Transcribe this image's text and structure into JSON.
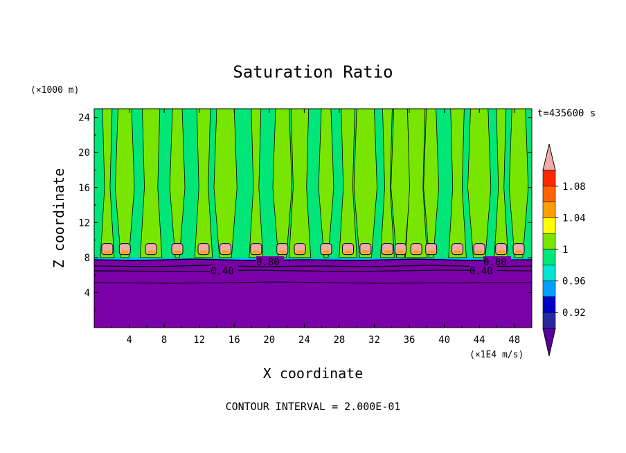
{
  "chart_data": {
    "type": "heatmap",
    "title": "Saturation Ratio",
    "xlabel": "X coordinate",
    "ylabel": "Z coordinate",
    "x_unit": "(×1E4 m/s)",
    "y_unit": "(×1000 m)",
    "time_label": "t=435600 s",
    "footer": "CONTOUR INTERVAL = 2.000E-01",
    "xlim": [
      0,
      50
    ],
    "ylim": [
      0,
      25
    ],
    "x_ticks": [
      "4",
      "8",
      "12",
      "16",
      "20",
      "24",
      "28",
      "32",
      "36",
      "40",
      "44",
      "48"
    ],
    "y_ticks": [
      "4",
      "8",
      "12",
      "16",
      "20",
      "24"
    ],
    "colorbar_levels": [
      "0.92",
      "0.96",
      "1",
      "1.04",
      "1.08"
    ],
    "colorbar_colors": [
      "#5a00a0",
      "#2828a0",
      "#0000c8",
      "#00a0ff",
      "#00e6d2",
      "#00e678",
      "#78e600",
      "#ffff00",
      "#ffa000",
      "#ff6400",
      "#ff2800",
      "#f0aaaa"
    ],
    "contour_labels": [
      "0.40",
      "0.80",
      "0.40",
      "0.80"
    ],
    "regions": {
      "lower_layer_top_z": 8,
      "lower_layer_value": "<0.92",
      "upper_layer_values": [
        "1",
        "1.04"
      ],
      "cap_cloud_peak_value": ">1.08",
      "column_x_centers": [
        1.5,
        3.5,
        6.5,
        9.5,
        12.5,
        15,
        18.5,
        21.5,
        23.5,
        26.5,
        29,
        31,
        33.5,
        35,
        36.8,
        38.5,
        41.5,
        44,
        46.5,
        48.5
      ]
    }
  }
}
